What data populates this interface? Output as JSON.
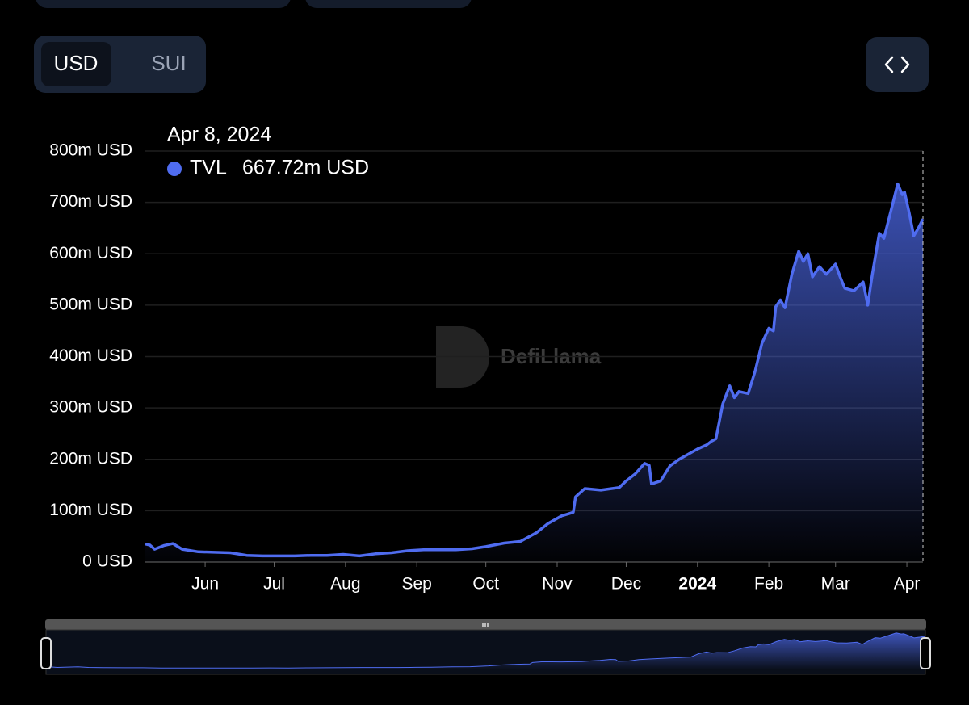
{
  "toggle": {
    "options": [
      "USD",
      "SUI"
    ]
  },
  "watermark": "DefiLlama",
  "chart_data": {
    "type": "area",
    "tooltip": {
      "title": "Apr 8, 2024",
      "value_label": "667.72m USD"
    },
    "x": [
      "2023-05-06",
      "2023-05-08",
      "2023-05-10",
      "2023-05-14",
      "2023-05-18",
      "2023-05-22",
      "2023-05-29",
      "2023-06-05",
      "2023-06-12",
      "2023-06-19",
      "2023-06-26",
      "2023-07-03",
      "2023-07-10",
      "2023-07-17",
      "2023-07-24",
      "2023-07-31",
      "2023-08-07",
      "2023-08-14",
      "2023-08-21",
      "2023-08-28",
      "2023-09-04",
      "2023-09-11",
      "2023-09-18",
      "2023-09-25",
      "2023-10-01",
      "2023-10-09",
      "2023-10-16",
      "2023-10-23",
      "2023-10-28",
      "2023-11-03",
      "2023-11-06",
      "2023-11-08",
      "2023-11-09",
      "2023-11-13",
      "2023-11-20",
      "2023-11-28",
      "2023-12-01",
      "2023-12-05",
      "2023-12-09",
      "2023-12-11",
      "2023-12-12",
      "2023-12-16",
      "2023-12-20",
      "2023-12-24",
      "2023-12-28",
      "2024-01-01",
      "2024-01-05",
      "2024-01-07",
      "2024-01-09",
      "2024-01-12",
      "2024-01-15",
      "2024-01-17",
      "2024-01-19",
      "2024-01-23",
      "2024-01-26",
      "2024-01-29",
      "2024-02-01",
      "2024-02-03",
      "2024-02-04",
      "2024-02-06",
      "2024-02-08",
      "2024-02-11",
      "2024-02-14",
      "2024-02-16",
      "2024-02-18",
      "2024-02-20",
      "2024-02-23",
      "2024-02-26",
      "2024-03-01",
      "2024-03-03",
      "2024-03-05",
      "2024-03-09",
      "2024-03-13",
      "2024-03-15",
      "2024-03-17",
      "2024-03-20",
      "2024-03-22",
      "2024-03-26",
      "2024-03-28",
      "2024-03-30",
      "2024-03-31",
      "2024-04-02",
      "2024-04-04",
      "2024-04-06",
      "2024-04-08"
    ],
    "series": [
      {
        "name": "TVL",
        "color": "#4f6cf0",
        "values": [
          35,
          33,
          25,
          32,
          36,
          25,
          20,
          19,
          18,
          13,
          12,
          12,
          12,
          13,
          13,
          15,
          12,
          16,
          18,
          22,
          24,
          24,
          24,
          26,
          30,
          37,
          40,
          57,
          75,
          90,
          94,
          97,
          127,
          143,
          140,
          145,
          158,
          172,
          192,
          188,
          152,
          158,
          187,
          200,
          210,
          220,
          228,
          235,
          240,
          308,
          343,
          320,
          332,
          328,
          371,
          426,
          455,
          450,
          497,
          510,
          495,
          560,
          605,
          585,
          600,
          555,
          575,
          560,
          580,
          555,
          533,
          528,
          545,
          500,
          560,
          640,
          630,
          700,
          736,
          715,
          720,
          680,
          635,
          650,
          667.72
        ]
      }
    ],
    "xlim": [
      "2023-05-06",
      "2024-04-08"
    ],
    "xticks": [
      {
        "value": "2023-06-01",
        "label": "Jun"
      },
      {
        "value": "2023-07-01",
        "label": "Jul"
      },
      {
        "value": "2023-08-01",
        "label": "Aug"
      },
      {
        "value": "2023-09-01",
        "label": "Sep"
      },
      {
        "value": "2023-10-01",
        "label": "Oct"
      },
      {
        "value": "2023-11-01",
        "label": "Nov"
      },
      {
        "value": "2023-12-01",
        "label": "Dec"
      },
      {
        "value": "2024-01-01",
        "label": "2024"
      },
      {
        "value": "2024-02-01",
        "label": "Feb"
      },
      {
        "value": "2024-03-01",
        "label": "Mar"
      },
      {
        "value": "2024-04-01",
        "label": "Apr"
      }
    ],
    "ylim": [
      0,
      800
    ],
    "yticks": [
      {
        "value": 0,
        "label": "0 USD"
      },
      {
        "value": 100,
        "label": "100m USD"
      },
      {
        "value": 200,
        "label": "200m USD"
      },
      {
        "value": 300,
        "label": "300m USD"
      },
      {
        "value": 400,
        "label": "400m USD"
      },
      {
        "value": 500,
        "label": "500m USD"
      },
      {
        "value": 600,
        "label": "600m USD"
      },
      {
        "value": 700,
        "label": "700m USD"
      },
      {
        "value": 800,
        "label": "800m USD"
      }
    ],
    "grid": true
  }
}
